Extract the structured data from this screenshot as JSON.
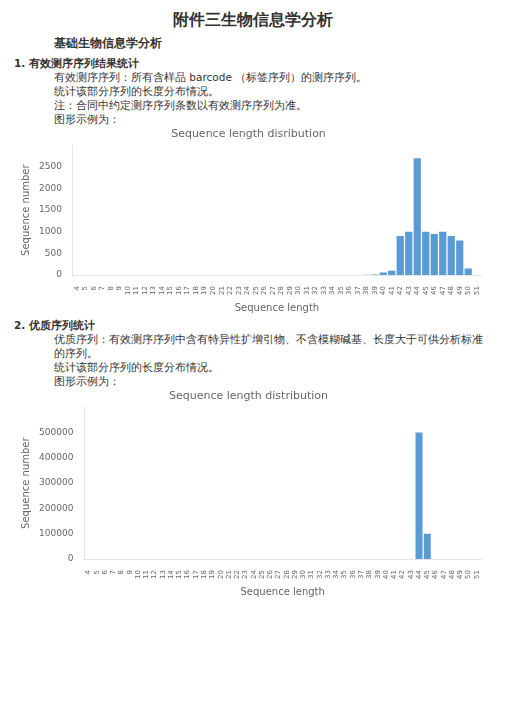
{
  "title": "附件三生物信息学分析",
  "subtitle": "基础生物信息学分析",
  "chart_data": [
    {
      "type": "bar",
      "annotations": [
        "1. 有效测序序列结果统计",
        "有效测序序列：所有含样品 barcode （标签序列）的测序序列。",
        "统计该部分序列的长度分布情况。",
        "注：合同中约定测序序列条数以有效测序序列为准。",
        "图形示例为："
      ],
      "title": "Sequence length disribution",
      "xlabel": "Sequence length",
      "ylabel": "Sequence number",
      "categories": [
        "4",
        "5",
        "6",
        "7",
        "8",
        "9",
        "10",
        "11",
        "12",
        "13",
        "14",
        "15",
        "16",
        "17",
        "18",
        "19",
        "20",
        "21",
        "22",
        "23",
        "24",
        "25",
        "26",
        "27",
        "28",
        "29",
        "30",
        "31",
        "32",
        "33",
        "34",
        "35",
        "36",
        "37",
        "38",
        "39",
        "40",
        "41",
        "42",
        "43",
        "44",
        "45",
        "46",
        "47",
        "48",
        "49",
        "50",
        "51"
      ],
      "values": [
        2,
        1,
        1,
        2,
        1,
        1,
        1,
        1,
        1,
        1,
        2,
        1,
        1,
        1,
        1,
        1,
        1,
        1,
        1,
        1,
        1,
        1,
        1,
        1,
        1,
        1,
        1,
        1,
        1,
        1,
        1,
        1,
        1,
        5,
        10,
        15,
        60,
        100,
        900,
        1000,
        2700,
        1000,
        950,
        1000,
        900,
        800,
        150,
        1
      ],
      "color": "#5B9BD5",
      "ylim": [
        0,
        3000
      ],
      "yticks": [
        0,
        500,
        1000,
        1500,
        2000,
        2500
      ],
      "grid": false
    },
    {
      "type": "bar",
      "annotations": [
        "2. 优质序列统计",
        "优质序列：有效测序序列中含有特异性扩增引物、不含模糊碱基、长度大于可供分析标准的序列。",
        "统计该部分序列的长度分布情况。",
        "图形示例为："
      ],
      "title": "Sequence length distribution",
      "xlabel": "Sequence length",
      "ylabel": "Sequence number",
      "categories": [
        "4",
        "5",
        "6",
        "7",
        "8",
        "9",
        "10",
        "11",
        "12",
        "13",
        "14",
        "15",
        "16",
        "17",
        "18",
        "19",
        "20",
        "21",
        "22",
        "23",
        "24",
        "25",
        "26",
        "27",
        "28",
        "29",
        "30",
        "31",
        "32",
        "33",
        "34",
        "35",
        "36",
        "37",
        "38",
        "39",
        "40",
        "41",
        "42",
        "43",
        "44",
        "45",
        "46",
        "47",
        "48",
        "49",
        "50",
        "51"
      ],
      "values": [
        0,
        0,
        0,
        0,
        0,
        0,
        0,
        0,
        0,
        0,
        0,
        0,
        0,
        0,
        0,
        0,
        0,
        0,
        0,
        0,
        0,
        0,
        0,
        0,
        0,
        0,
        0,
        0,
        0,
        0,
        0,
        0,
        0,
        0,
        0,
        0,
        0,
        0,
        0,
        0,
        500000,
        100000,
        0,
        0,
        0,
        0,
        0,
        0
      ],
      "color": "#5B9BD5",
      "ylim": [
        0,
        600000
      ],
      "yticks": [
        0,
        100000,
        200000,
        300000,
        400000,
        500000
      ],
      "grid": false
    }
  ]
}
